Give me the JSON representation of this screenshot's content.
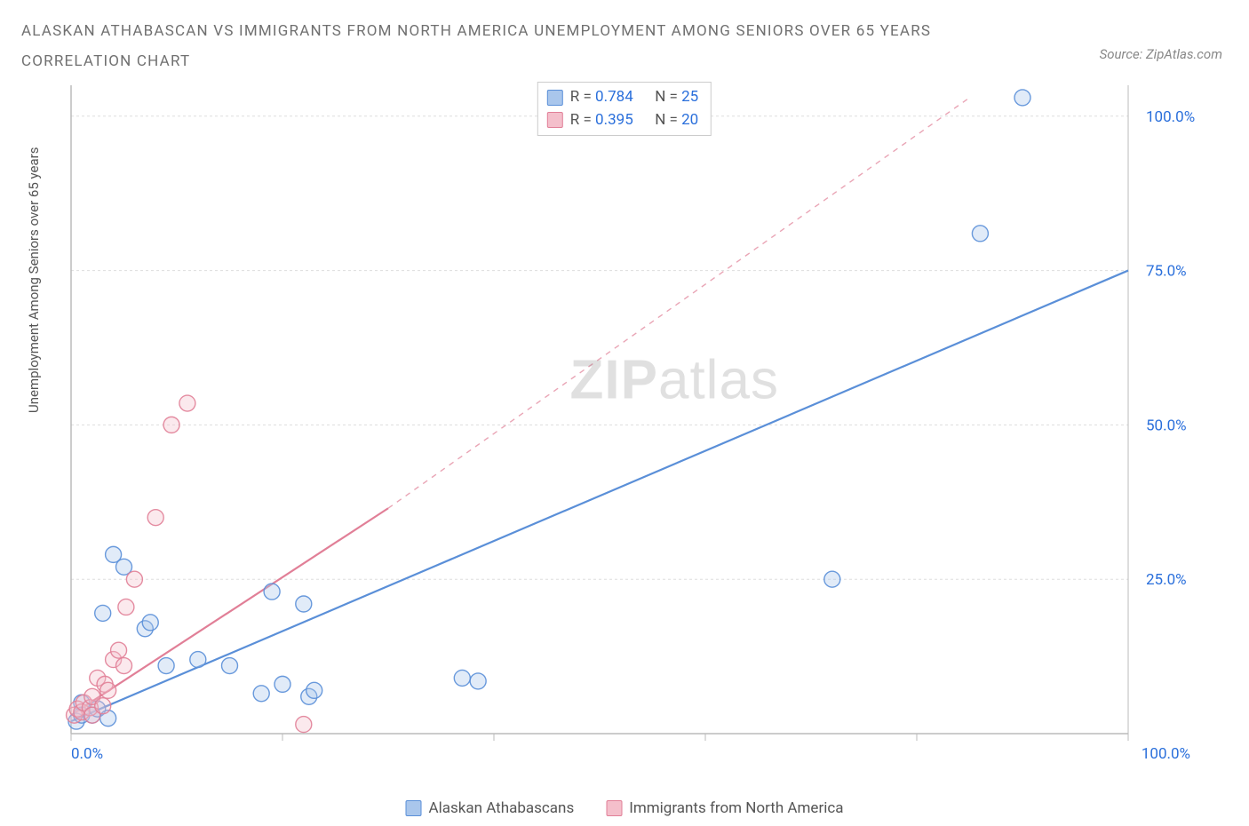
{
  "title": {
    "line1": "ALASKAN ATHABASCAN VS IMMIGRANTS FROM NORTH AMERICA UNEMPLOYMENT AMONG SENIORS OVER 65 YEARS",
    "line2": "CORRELATION CHART"
  },
  "source": "Source: ZipAtlas.com",
  "watermark": {
    "bold": "ZIP",
    "rest": "atlas"
  },
  "chart": {
    "type": "scatter",
    "ylabel": "Unemployment Among Seniors over 65 years",
    "xlim": [
      0,
      100
    ],
    "ylim": [
      0,
      105
    ],
    "background_color": "#ffffff",
    "grid_color": "#dddddd",
    "axis_color": "#bbbbbb",
    "xaxis": {
      "ticks": [
        0,
        20,
        40,
        60,
        80,
        100
      ],
      "labels": {
        "left": "0.0%",
        "right": "100.0%"
      },
      "label_color": "#2a6fdb"
    },
    "yaxis": {
      "ticks": [
        25,
        50,
        75,
        100
      ],
      "labels": [
        "25.0%",
        "50.0%",
        "75.0%",
        "100.0%"
      ],
      "label_color": "#2a6fdb"
    },
    "marker": {
      "radius": 9,
      "fill_opacity": 0.35,
      "stroke_opacity": 0.9,
      "stroke_width": 1.4
    },
    "series": [
      {
        "id": "athabascan",
        "label": "Alaskan Athabascans",
        "color": "#5a8fd8",
        "fill": "#a9c6ec",
        "R": "0.784",
        "N": "25",
        "trend": {
          "solid_end_x": 100,
          "solid_end_y": 75,
          "intercept": 2.0,
          "dashed": false
        },
        "points": [
          [
            0.5,
            2
          ],
          [
            1,
            5
          ],
          [
            1,
            3
          ],
          [
            2,
            3
          ],
          [
            2.5,
            4
          ],
          [
            3,
            19.5
          ],
          [
            3.5,
            2.5
          ],
          [
            4,
            29
          ],
          [
            5,
            27
          ],
          [
            7,
            17
          ],
          [
            7.5,
            18
          ],
          [
            9,
            11
          ],
          [
            12,
            12
          ],
          [
            15,
            11
          ],
          [
            18,
            6.5
          ],
          [
            19,
            23
          ],
          [
            20,
            8
          ],
          [
            22,
            21
          ],
          [
            22.5,
            6
          ],
          [
            23,
            7
          ],
          [
            37,
            9
          ],
          [
            38.5,
            8.5
          ],
          [
            72,
            25
          ],
          [
            86,
            81
          ],
          [
            90,
            103
          ]
        ]
      },
      {
        "id": "immigrants",
        "label": "Immigrants from North America",
        "color": "#e17f97",
        "fill": "#f4bfcb",
        "R": "0.395",
        "N": "20",
        "trend": {
          "solid_end_x": 30,
          "solid_end_y": 36.5,
          "intercept": 3.0,
          "dashed": true,
          "dashed_end_x": 85,
          "dashed_end_y": 103
        },
        "points": [
          [
            0.3,
            3
          ],
          [
            0.6,
            4
          ],
          [
            1,
            3.5
          ],
          [
            1.2,
            5
          ],
          [
            1.8,
            4.2
          ],
          [
            2,
            6
          ],
          [
            2,
            3
          ],
          [
            2.5,
            9
          ],
          [
            3,
            4.5
          ],
          [
            3.2,
            8
          ],
          [
            3.5,
            7
          ],
          [
            4,
            12
          ],
          [
            4.5,
            13.5
          ],
          [
            5,
            11
          ],
          [
            5.2,
            20.5
          ],
          [
            6,
            25
          ],
          [
            8,
            35
          ],
          [
            9.5,
            50
          ],
          [
            11,
            53.5
          ],
          [
            22,
            1.5
          ]
        ]
      }
    ]
  },
  "stats_box": {
    "R_label": "R =",
    "N_label": "N ="
  }
}
